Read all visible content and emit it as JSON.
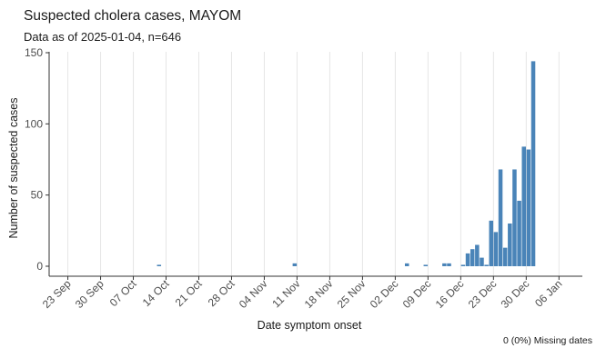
{
  "chart_data": {
    "type": "bar",
    "title": "Suspected cholera cases, MAYOM",
    "subtitle": "Data as of 2025-01-04, n=646",
    "xlabel": "Date symptom onset",
    "ylabel": "Number of suspected cases",
    "caption": "0 (0%) Missing dates",
    "ylim": [
      0,
      150
    ],
    "yticks": [
      0,
      50,
      100,
      150
    ],
    "xlim": [
      "2024-09-19",
      "2025-01-11"
    ],
    "xticks": [
      {
        "date": "2024-09-23",
        "label": "23 Sep"
      },
      {
        "date": "2024-09-30",
        "label": "30 Sep"
      },
      {
        "date": "2024-10-07",
        "label": "07 Oct"
      },
      {
        "date": "2024-10-14",
        "label": "14 Oct"
      },
      {
        "date": "2024-10-21",
        "label": "21 Oct"
      },
      {
        "date": "2024-10-28",
        "label": "28 Oct"
      },
      {
        "date": "2024-11-04",
        "label": "04 Nov"
      },
      {
        "date": "2024-11-11",
        "label": "11 Nov"
      },
      {
        "date": "2024-11-18",
        "label": "18 Nov"
      },
      {
        "date": "2024-11-25",
        "label": "25 Nov"
      },
      {
        "date": "2024-12-02",
        "label": "02 Dec"
      },
      {
        "date": "2024-12-09",
        "label": "09 Dec"
      },
      {
        "date": "2024-12-16",
        "label": "16 Dec"
      },
      {
        "date": "2024-12-23",
        "label": "23 Dec"
      },
      {
        "date": "2024-12-30",
        "label": "30 Dec"
      },
      {
        "date": "2025-01-06",
        "label": "06 Jan"
      }
    ],
    "grid": true,
    "bar_color": "#4a84b8",
    "x": [
      "2024-10-12",
      "2024-11-10",
      "2024-12-04",
      "2024-12-08",
      "2024-12-12",
      "2024-12-13",
      "2024-12-16",
      "2024-12-17",
      "2024-12-18",
      "2024-12-19",
      "2024-12-20",
      "2024-12-21",
      "2024-12-22",
      "2024-12-23",
      "2024-12-24",
      "2024-12-25",
      "2024-12-26",
      "2024-12-27",
      "2024-12-28",
      "2024-12-29",
      "2024-12-30",
      "2024-12-31",
      "2025-01-01"
    ],
    "values": [
      1,
      2,
      2,
      1,
      2,
      2,
      1,
      9,
      12,
      15,
      6,
      1,
      32,
      24,
      68,
      13,
      30,
      68,
      46,
      84,
      82,
      144,
      0
    ]
  }
}
